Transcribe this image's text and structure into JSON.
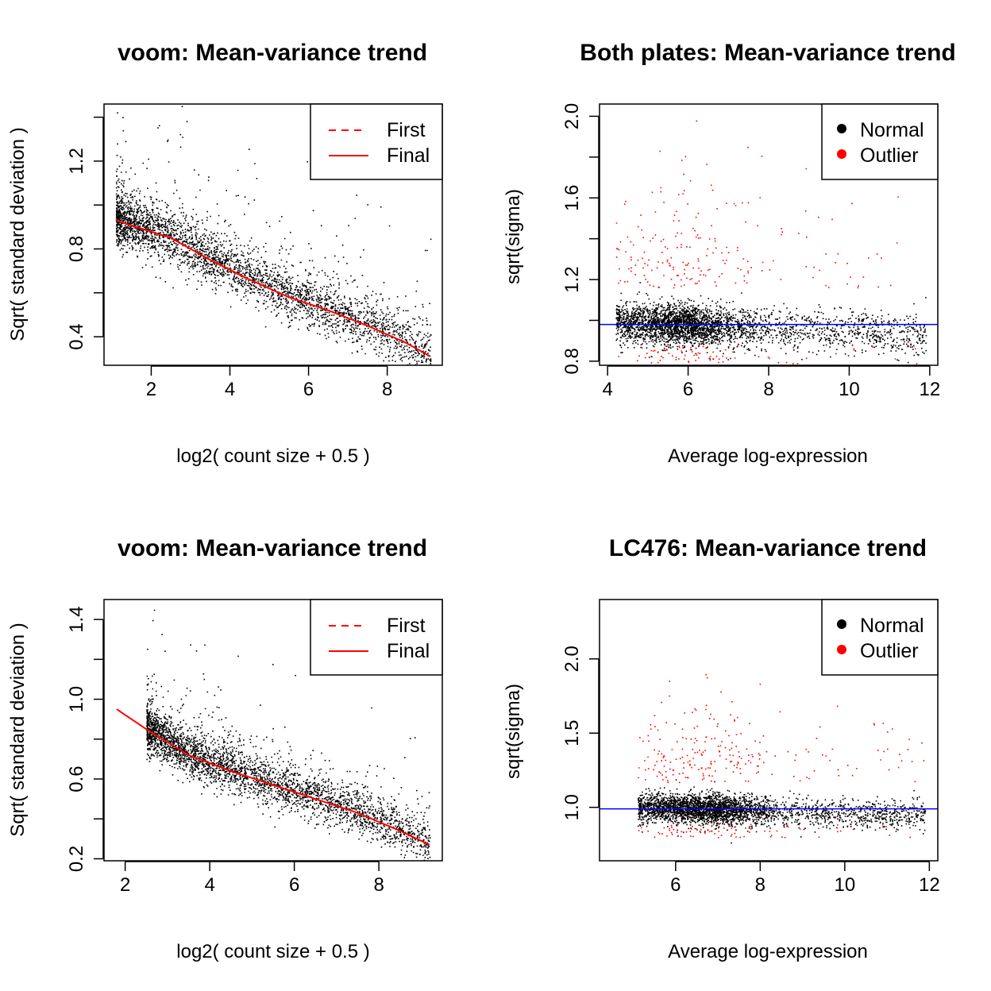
{
  "chart_data": [
    {
      "type": "scatter",
      "title": "voom: Mean-variance trend",
      "xlabel": "log2( count size + 0.5 )",
      "ylabel": "Sqrt( standard deviation )",
      "xlim": [
        0.8,
        9.4
      ],
      "ylim": [
        0.27,
        1.46
      ],
      "xticks": [
        "2",
        "4",
        "6",
        "8"
      ],
      "yticks": [
        "0.4",
        "0.8",
        "1.2"
      ],
      "yticks_minor": [
        0.6,
        1.0,
        1.4
      ],
      "legend": {
        "position": "top-right",
        "entries": [
          {
            "name": "First",
            "style": "dashed",
            "color": "#ff0000"
          },
          {
            "name": "Final",
            "style": "solid",
            "color": "#ff0000"
          }
        ]
      },
      "cloud": {
        "xmin": 1.1,
        "xmax": 9.1,
        "n": 3400,
        "point_color": "#000000"
      },
      "trend_final": {
        "x": [
          1.1,
          2.5,
          3.5,
          4.5,
          5.5,
          6.5,
          7.5,
          8.5,
          9.1
        ],
        "y": [
          0.93,
          0.85,
          0.75,
          0.66,
          0.58,
          0.52,
          0.45,
          0.37,
          0.31
        ],
        "color": "#ff0000"
      }
    },
    {
      "type": "scatter",
      "title": "Both plates: Mean-variance trend",
      "xlabel": "Average log-expression",
      "ylabel": "sqrt(sigma)",
      "xlim": [
        3.8,
        12.2
      ],
      "ylim": [
        0.78,
        2.06
      ],
      "xticks": [
        "4",
        "6",
        "8",
        "10",
        "12"
      ],
      "yticks": [
        "0.8",
        "1.2",
        "1.6",
        "2.0"
      ],
      "yticks_minor": [
        1.0,
        1.4,
        1.8
      ],
      "legend": {
        "position": "top-right",
        "entries": [
          {
            "name": "Normal",
            "color": "#000000"
          },
          {
            "name": "Outlier",
            "color": "#ff0000"
          }
        ]
      },
      "cloud": {
        "xmin": 4.2,
        "xmax": 11.9,
        "n": 3600,
        "center": 0.98,
        "normal_color": "#000000",
        "outlier_color": "#ff0000"
      },
      "hline": {
        "y": 0.98,
        "color": "#0000ff"
      }
    },
    {
      "type": "scatter",
      "title": "voom: Mean-variance trend",
      "xlabel": "log2( count size + 0.5 )",
      "ylabel": "Sqrt( standard deviation )",
      "xlim": [
        1.5,
        9.5
      ],
      "ylim": [
        0.19,
        1.5
      ],
      "xticks": [
        "2",
        "4",
        "6",
        "8"
      ],
      "yticks": [
        "0.2",
        "0.6",
        "1.0",
        "1.4"
      ],
      "yticks_minor": [
        0.4,
        0.8,
        1.2
      ],
      "legend": {
        "position": "top-right",
        "entries": [
          {
            "name": "First",
            "style": "dashed",
            "color": "#ff0000"
          },
          {
            "name": "Final",
            "style": "solid",
            "color": "#ff0000"
          }
        ]
      },
      "cloud": {
        "xmin": 2.5,
        "xmax": 9.2,
        "n": 3400,
        "point_color": "#000000"
      },
      "trend_final": {
        "x": [
          1.8,
          2.5,
          3.5,
          4.5,
          5.5,
          6.5,
          7.5,
          8.5,
          9.2
        ],
        "y": [
          0.95,
          0.85,
          0.72,
          0.64,
          0.57,
          0.5,
          0.43,
          0.34,
          0.27
        ],
        "color": "#ff0000"
      }
    },
    {
      "type": "scatter",
      "title": "LC476: Mean-variance trend",
      "xlabel": "Average log-expression",
      "ylabel": "sqrt(sigma)",
      "xlim": [
        4.2,
        12.2
      ],
      "ylim": [
        0.64,
        2.4
      ],
      "xticks": [
        "6",
        "8",
        "10",
        "12"
      ],
      "yticks": [
        "1.0",
        "1.5",
        "2.0"
      ],
      "yticks_minor": [],
      "legend": {
        "position": "top-right",
        "entries": [
          {
            "name": "Normal",
            "color": "#000000"
          },
          {
            "name": "Outlier",
            "color": "#ff0000"
          }
        ]
      },
      "cloud": {
        "xmin": 5.1,
        "xmax": 11.9,
        "n": 3600,
        "center": 0.99,
        "normal_color": "#000000",
        "outlier_color": "#ff0000"
      },
      "hline": {
        "y": 0.99,
        "color": "#0000ff"
      }
    }
  ]
}
